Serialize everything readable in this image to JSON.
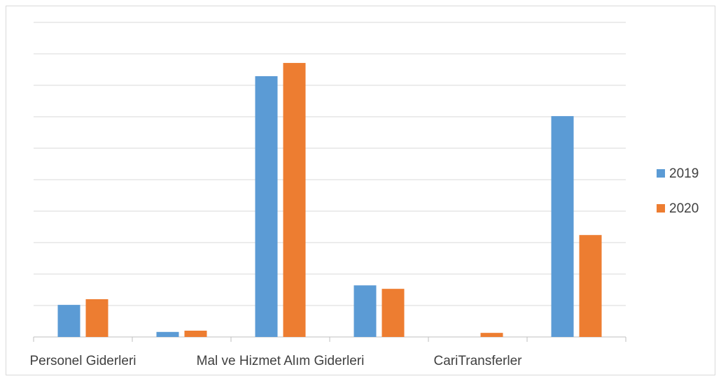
{
  "chart_data": {
    "type": "bar",
    "categories": [
      "Personel Giderleri",
      null,
      "Mal ve Hizmet Alım Giderleri",
      null,
      "CariTransferler",
      null
    ],
    "series": [
      {
        "name": "2019",
        "color": "#5b9bd5",
        "values": [
          1.02,
          0.16,
          8.29,
          1.64,
          0,
          7.02
        ]
      },
      {
        "name": "2020",
        "color": "#ed7d31",
        "values": [
          1.2,
          0.2,
          8.71,
          1.53,
          0.13,
          3.24
        ]
      }
    ],
    "ylim": [
      0,
      10
    ],
    "yticks": [
      0,
      1,
      2,
      3,
      4,
      5,
      6,
      7,
      8,
      9,
      10
    ],
    "grid": true,
    "legend": "right"
  }
}
